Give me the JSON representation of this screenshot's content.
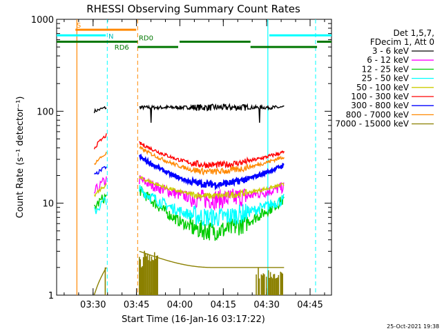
{
  "colors": {
    "black": "#000000",
    "magenta": "#ff00ff",
    "green": "#00cc00",
    "cyan": "#00ffff",
    "yellow": "#cccc00",
    "red": "#ff0000",
    "blue": "#0000ff",
    "orange": "#ff8800",
    "olive": "#8b8000",
    "darkgreen": "#007700"
  },
  "chart_data": {
    "type": "line",
    "title": "RHESSI Observing Summary Count Rates",
    "xlabel": "Start Time (16-Jan-16 03:17:22)",
    "ylabel": "Count Rate (s⁻¹ detector⁻¹)",
    "yscale": "log",
    "ylim": [
      1,
      1000
    ],
    "xlim_minutes": [
      0,
      95
    ],
    "x_ticks": [
      {
        "label": "03:30",
        "minutes": 12.6
      },
      {
        "label": "03:45",
        "minutes": 27.6
      },
      {
        "label": "04:00",
        "minutes": 42.6
      },
      {
        "label": "04:15",
        "minutes": 57.6
      },
      {
        "label": "04:30",
        "minutes": 72.6
      },
      {
        "label": "04:45",
        "minutes": 87.6
      }
    ],
    "y_ticks": [
      {
        "label": "1",
        "value": 1
      },
      {
        "label": "10",
        "value": 10
      },
      {
        "label": "100",
        "value": 100
      },
      {
        "label": "1000",
        "value": 1000
      }
    ],
    "legend_header": [
      "Det 1,5,7,",
      "FDecim 1, Att 0"
    ],
    "legend_placement": "right",
    "series": [
      {
        "name": "3 - 6 keV",
        "color": "#000000",
        "pre": [
          100,
          110
        ],
        "main": [
          [
            0,
            110
          ],
          [
            0.5,
            110
          ],
          [
            1,
            110
          ]
        ]
      },
      {
        "name": "6 - 12 keV",
        "color": "#ff00ff",
        "pre": [
          13,
          18
        ],
        "main": [
          [
            0,
            18
          ],
          [
            0.5,
            11
          ],
          [
            1,
            15
          ]
        ]
      },
      {
        "name": "12 - 25 keV",
        "color": "#00cc00",
        "pre": [
          9,
          12
        ],
        "main": [
          [
            0,
            14
          ],
          [
            0.5,
            5
          ],
          [
            1,
            11
          ]
        ]
      },
      {
        "name": "25 - 50 keV",
        "color": "#00ffff",
        "pre": [
          8,
          11
        ],
        "main": [
          [
            0,
            14
          ],
          [
            0.5,
            7
          ],
          [
            1,
            11
          ]
        ]
      },
      {
        "name": "50 - 100 keV",
        "color": "#cccc00",
        "pre": [
          12,
          16
        ],
        "main": [
          [
            0,
            19
          ],
          [
            0.5,
            12
          ],
          [
            1,
            16
          ]
        ]
      },
      {
        "name": "100 - 300 keV",
        "color": "#ff0000",
        "pre": [
          40,
          55
        ],
        "main": [
          [
            0,
            45
          ],
          [
            0.5,
            26
          ],
          [
            1,
            36
          ]
        ]
      },
      {
        "name": "300 - 800 keV",
        "color": "#0000ff",
        "pre": [
          20,
          25
        ],
        "main": [
          [
            0,
            32
          ],
          [
            0.5,
            16
          ],
          [
            1,
            26
          ]
        ]
      },
      {
        "name": "800 - 7000 keV",
        "color": "#ff8800",
        "pre": [
          27,
          35
        ],
        "main": [
          [
            0,
            40
          ],
          [
            0.5,
            22
          ],
          [
            1,
            32
          ]
        ]
      },
      {
        "name": "7000 - 15000 keV",
        "color": "#8b8000",
        "pre": [
          1,
          2
        ],
        "main": [
          [
            0,
            3
          ],
          [
            0.5,
            2
          ],
          [
            1,
            2
          ]
        ]
      }
    ],
    "annotations": {
      "S": {
        "label": "S",
        "start_min": 7,
        "end_min": 28
      },
      "N": {
        "label": "N"
      },
      "RD6": {
        "label": "RD6"
      },
      "RD0": {
        "label": "RD0"
      }
    }
  },
  "timestamp": "25-Oct-2021 19:38"
}
